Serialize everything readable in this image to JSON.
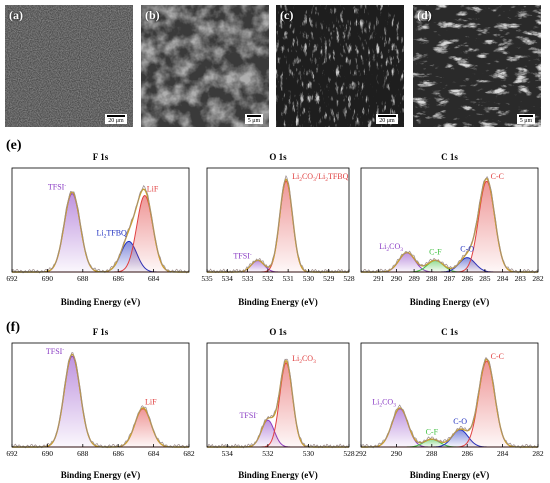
{
  "sem_panels": [
    {
      "label": "(a)",
      "scale": "20 μm"
    },
    {
      "label": "(b)",
      "scale": "5 μm"
    },
    {
      "label": "(c)",
      "scale": "20 μm"
    },
    {
      "label": "(d)",
      "scale": "5 μm"
    }
  ],
  "rows": [
    {
      "label": "(e)"
    },
    {
      "label": "(f)"
    }
  ],
  "xlabel": "Binding Energy (eV)",
  "chart_data": [
    {
      "type": "line",
      "title": "F 1s",
      "xlim": [
        692,
        682
      ],
      "x_ticks": [
        "692",
        "690",
        "688",
        "686",
        "684"
      ],
      "peaks": [
        {
          "label": "TFSI-",
          "center": 688.6,
          "height": 0.82,
          "color": "#8a3cc4"
        },
        {
          "label": "Li2TFBQ",
          "center": 685.4,
          "height": 0.32,
          "color": "#2030c0"
        },
        {
          "label": "LiF",
          "center": 684.5,
          "height": 0.8,
          "color": "#e04040"
        }
      ]
    },
    {
      "type": "line",
      "title": "O 1s",
      "xlim": [
        535,
        528
      ],
      "x_ticks": [
        "535",
        "534",
        "533",
        "532",
        "531",
        "530",
        "529",
        "528"
      ],
      "peaks": [
        {
          "label": "TFSI-",
          "center": 532.5,
          "height": 0.12,
          "color": "#8a3cc4"
        },
        {
          "label": "Li2CO3/Li2TFBQ",
          "center": 531.1,
          "height": 0.95,
          "color": "#e04040"
        }
      ]
    },
    {
      "type": "line",
      "title": "C 1s",
      "xlim": [
        292,
        282
      ],
      "x_ticks": [
        "291",
        "290",
        "289",
        "288",
        "287",
        "286",
        "285",
        "284",
        "283",
        "282"
      ],
      "peaks": [
        {
          "label": "Li2CO3",
          "center": 289.4,
          "height": 0.2,
          "color": "#8a3cc4"
        },
        {
          "label": "C-F",
          "center": 287.8,
          "height": 0.12,
          "color": "#40c040"
        },
        {
          "label": "C-O",
          "center": 286.0,
          "height": 0.15,
          "color": "#2030c0"
        },
        {
          "label": "C-C",
          "center": 284.9,
          "height": 0.95,
          "color": "#e04040"
        }
      ]
    },
    {
      "type": "line",
      "title": "F 1s",
      "xlim": [
        692,
        682
      ],
      "x_ticks": [
        "692",
        "690",
        "688",
        "686",
        "684",
        "682"
      ],
      "peaks": [
        {
          "label": "TFSI-",
          "center": 688.6,
          "height": 0.95,
          "color": "#8a3cc4"
        },
        {
          "label": "LiF",
          "center": 684.6,
          "height": 0.4,
          "color": "#e04040"
        }
      ]
    },
    {
      "type": "line",
      "title": "O 1s",
      "xlim": [
        535,
        528
      ],
      "x_ticks": [
        "534",
        "532",
        "530",
        "528"
      ],
      "peaks": [
        {
          "label": "TFSI-",
          "center": 532.0,
          "height": 0.28,
          "color": "#8a3cc4"
        },
        {
          "label": "Li2CO3",
          "center": 531.1,
          "height": 0.88,
          "color": "#e04040"
        }
      ]
    },
    {
      "type": "line",
      "title": "C 1s",
      "xlim": [
        292,
        282
      ],
      "x_ticks": [
        "292",
        "290",
        "288",
        "286",
        "284",
        "282"
      ],
      "peaks": [
        {
          "label": "Li2CO3",
          "center": 289.8,
          "height": 0.4,
          "color": "#8a3cc4"
        },
        {
          "label": "C-F",
          "center": 288.0,
          "height": 0.08,
          "color": "#40c040"
        },
        {
          "label": "C-O",
          "center": 286.4,
          "height": 0.18,
          "color": "#2030c0"
        },
        {
          "label": "C-C",
          "center": 284.9,
          "height": 0.9,
          "color": "#e04040"
        }
      ]
    }
  ]
}
